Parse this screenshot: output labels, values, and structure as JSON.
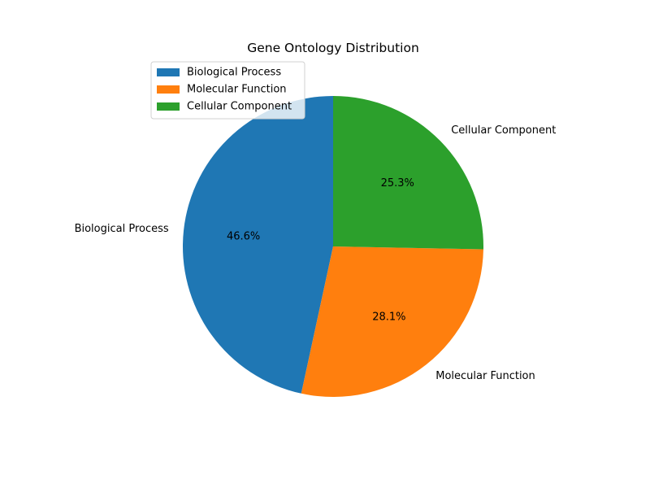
{
  "chart_data": {
    "type": "pie",
    "title": "Gene Ontology Distribution",
    "labels": [
      "Biological Process",
      "Molecular Function",
      "Cellular Component"
    ],
    "values": [
      46.6,
      28.1,
      25.3
    ],
    "percent_labels": [
      "46.6%",
      "28.1%",
      "25.3%"
    ],
    "colors": [
      "#1f77b4",
      "#ff7f0e",
      "#2ca02c"
    ],
    "start_angle_deg": 90,
    "direction": "counterclockwise",
    "legend": {
      "position": "upper-left",
      "entries": [
        "Biological Process",
        "Molecular Function",
        "Cellular Component"
      ]
    }
  }
}
